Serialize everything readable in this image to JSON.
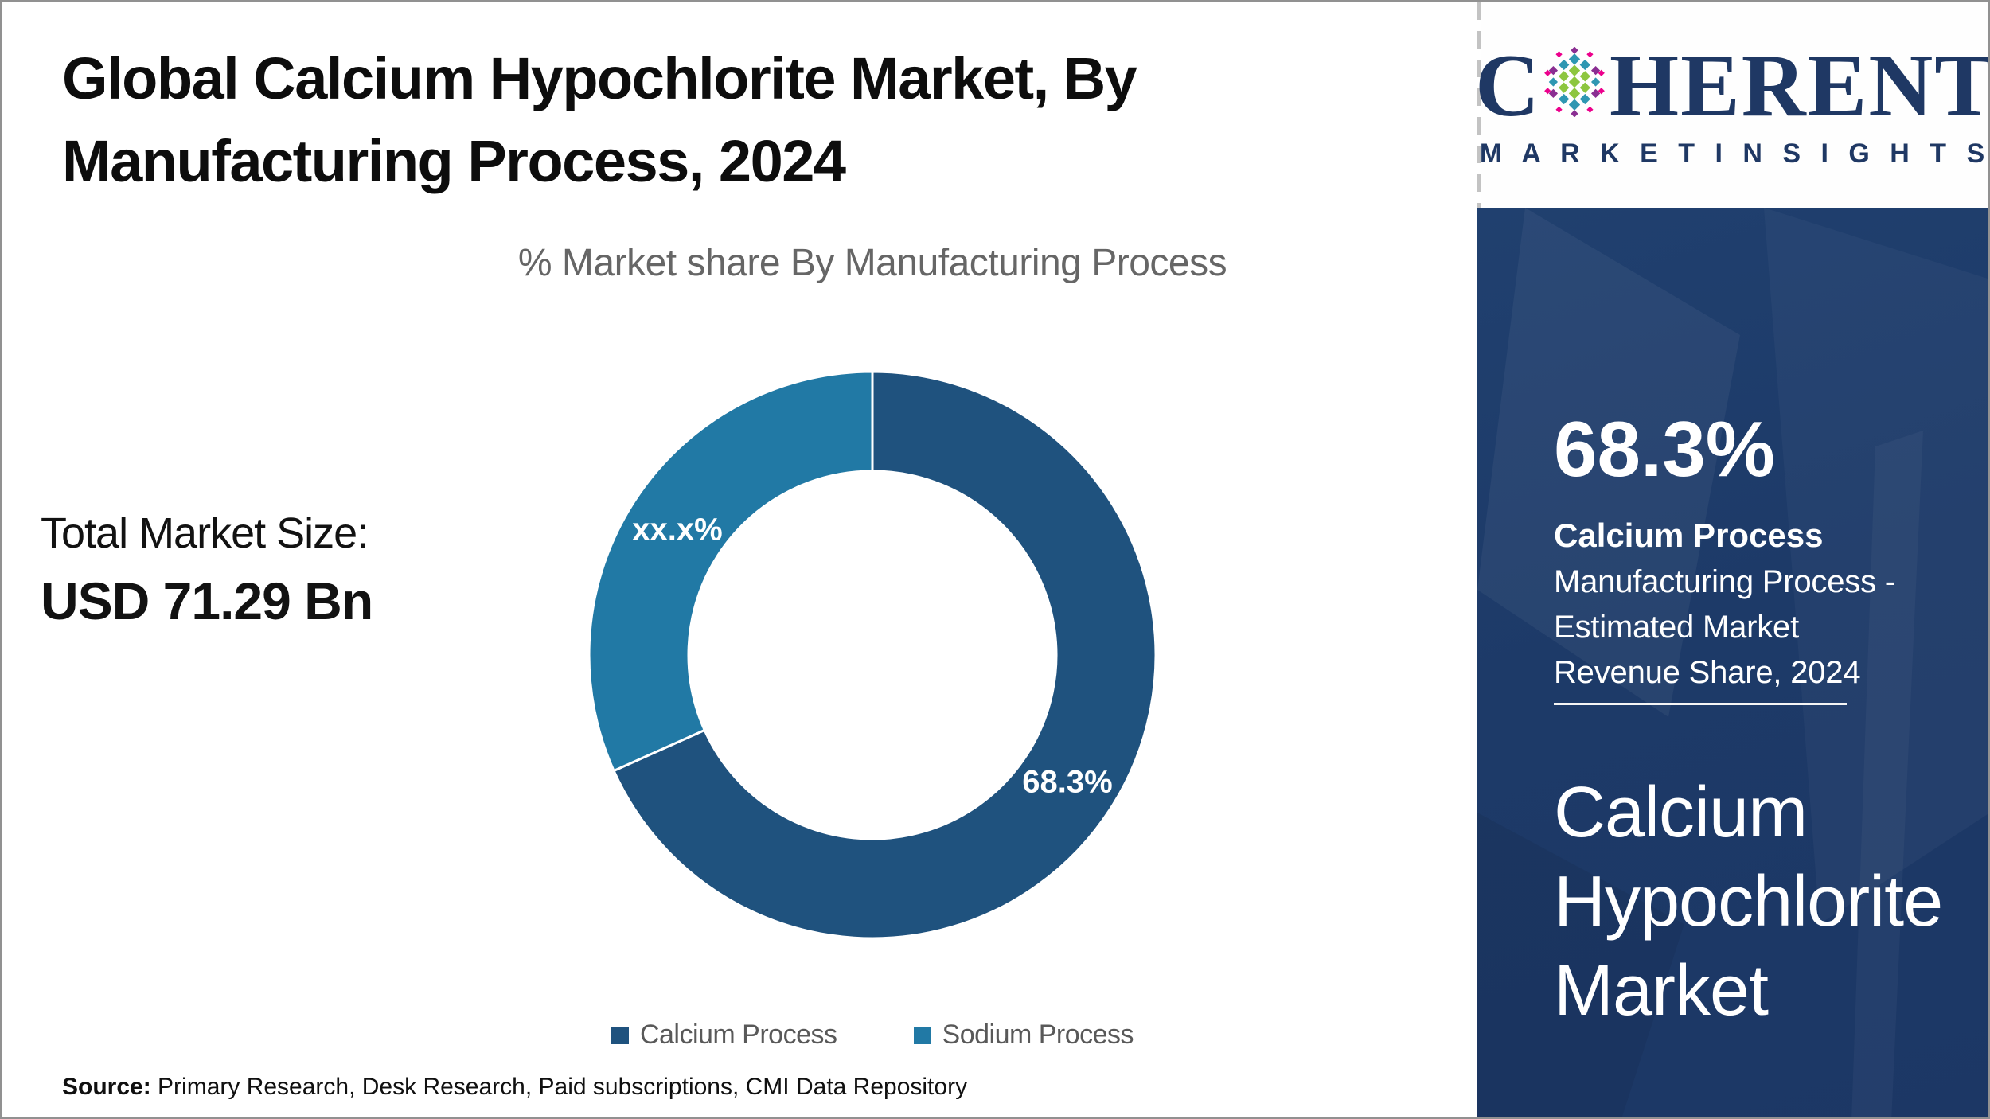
{
  "header": {
    "title": "Global Calcium Hypochlorite Market, By Manufacturing Process, 2024"
  },
  "logo": {
    "brand_prefix": "C",
    "brand_suffix": "HERENT",
    "tagline": "M A R K E T   I N S I G H T S",
    "navy": "#1F3864",
    "sphere_colors": {
      "green": "#8DC63F",
      "teal": "#2E97B2",
      "purple": "#8A2E92",
      "pink": "#EC008C"
    }
  },
  "chart_data": {
    "type": "pie",
    "donut": true,
    "hole_ratio": 0.65,
    "title": "% Market share By Manufacturing Process",
    "legend_position": "bottom",
    "start_angle_deg": 0,
    "slices": [
      {
        "name": "Calcium Process",
        "value": 68.3,
        "label": "68.3%",
        "color": "#1F527E"
      },
      {
        "name": "Sodium Process",
        "value": 31.7,
        "label": "xx.x%",
        "color": "#2179A5"
      }
    ]
  },
  "stats": {
    "total_label": "Total Market Size:",
    "total_value": "USD 71.29 Bn"
  },
  "sidebar": {
    "stat_value": "68.3%",
    "stat_name": "Calcium Process",
    "stat_desc": "Manufacturing Process - Estimated Market Revenue Share, 2024",
    "market_name": "Calcium Hypochlorite Market",
    "bg": "#1D3A68"
  },
  "source": {
    "label": "Source:",
    "text": " Primary Research, Desk Research, Paid subscriptions, CMI Data Repository"
  }
}
